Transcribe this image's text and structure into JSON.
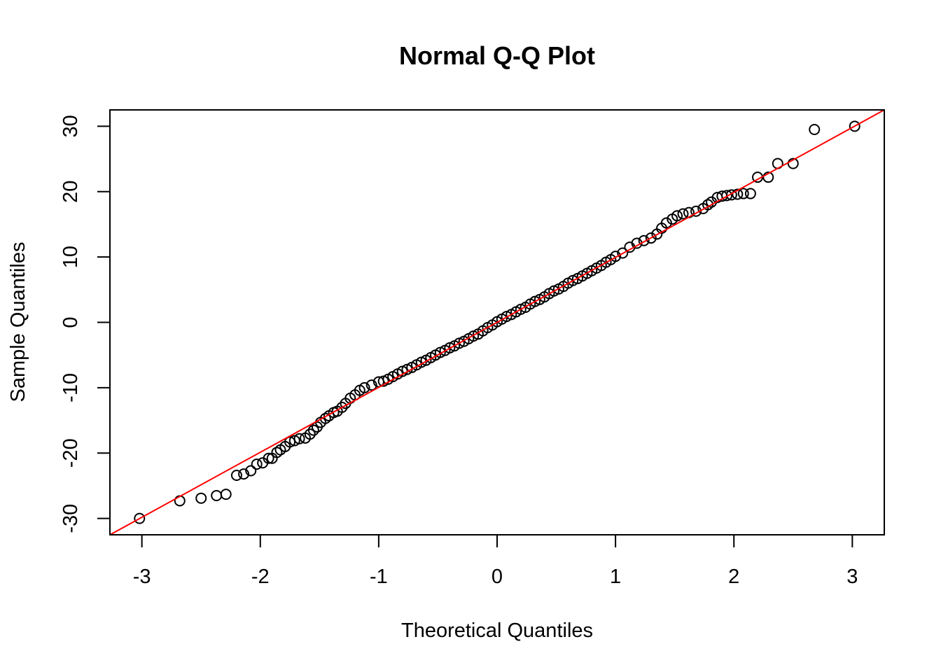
{
  "chart_data": {
    "type": "scatter",
    "title": "Normal Q-Q Plot",
    "xlabel": "Theoretical Quantiles",
    "ylabel": "Sample Quantiles",
    "xlim": [
      -3.27,
      3.27
    ],
    "ylim": [
      -32.5,
      32.5
    ],
    "xticks": [
      -3,
      -2,
      -1,
      0,
      1,
      2,
      3
    ],
    "xtick_labels": [
      "-3",
      "-2",
      "-1",
      "0",
      "1",
      "2",
      "3"
    ],
    "yticks": [
      -30,
      -20,
      -10,
      0,
      10,
      20,
      30
    ],
    "ytick_labels": [
      "-30",
      "-20",
      "-10",
      "0",
      "10",
      "20",
      "30"
    ],
    "grid": false,
    "point_color": "#000000",
    "qq_line": {
      "slope": 9.94,
      "intercept": 0.0,
      "color": "#ff0000"
    },
    "points": [
      [
        -3.02,
        -30.0
      ],
      [
        -2.68,
        -27.3
      ],
      [
        -2.5,
        -26.9
      ],
      [
        -2.37,
        -26.5
      ],
      [
        -2.29,
        -26.3
      ],
      [
        -2.2,
        -23.4
      ],
      [
        -2.14,
        -23.2
      ],
      [
        -2.08,
        -22.7
      ],
      [
        -2.03,
        -21.7
      ],
      [
        -1.98,
        -21.5
      ],
      [
        -1.93,
        -20.8
      ],
      [
        -1.9,
        -20.8
      ],
      [
        -1.86,
        -19.9
      ],
      [
        -1.83,
        -19.5
      ],
      [
        -1.79,
        -19.0
      ],
      [
        -1.75,
        -18.3
      ],
      [
        -1.71,
        -18.1
      ],
      [
        -1.67,
        -17.8
      ],
      [
        -1.62,
        -17.7
      ],
      [
        -1.58,
        -17.1
      ],
      [
        -1.55,
        -16.5
      ],
      [
        -1.52,
        -16.0
      ],
      [
        -1.49,
        -15.3
      ],
      [
        -1.45,
        -14.7
      ],
      [
        -1.42,
        -14.3
      ],
      [
        -1.38,
        -13.8
      ],
      [
        -1.35,
        -13.6
      ],
      [
        -1.31,
        -13.0
      ],
      [
        -1.28,
        -12.4
      ],
      [
        -1.24,
        -11.6
      ],
      [
        -1.2,
        -11.1
      ],
      [
        -1.16,
        -10.4
      ],
      [
        -1.12,
        -10.0
      ],
      [
        -1.06,
        -9.6
      ],
      [
        -1.0,
        -9.1
      ],
      [
        -0.96,
        -9.0
      ],
      [
        -0.92,
        -8.7
      ],
      [
        -0.88,
        -8.3
      ],
      [
        -0.84,
        -7.9
      ],
      [
        -0.8,
        -7.5
      ],
      [
        -0.76,
        -7.2
      ],
      [
        -0.72,
        -6.9
      ],
      [
        -0.68,
        -6.5
      ],
      [
        -0.64,
        -6.1
      ],
      [
        -0.6,
        -5.8
      ],
      [
        -0.56,
        -5.4
      ],
      [
        -0.52,
        -5.0
      ],
      [
        -0.48,
        -4.6
      ],
      [
        -0.44,
        -4.3
      ],
      [
        -0.4,
        -3.9
      ],
      [
        -0.36,
        -3.6
      ],
      [
        -0.32,
        -3.2
      ],
      [
        -0.28,
        -2.9
      ],
      [
        -0.24,
        -2.5
      ],
      [
        -0.2,
        -2.1
      ],
      [
        -0.16,
        -1.8
      ],
      [
        -0.12,
        -1.3
      ],
      [
        -0.08,
        -0.8
      ],
      [
        -0.04,
        -0.4
      ],
      [
        0.0,
        0.1
      ],
      [
        0.04,
        0.5
      ],
      [
        0.08,
        0.9
      ],
      [
        0.12,
        1.2
      ],
      [
        0.16,
        1.6
      ],
      [
        0.2,
        2.0
      ],
      [
        0.24,
        2.3
      ],
      [
        0.28,
        2.8
      ],
      [
        0.32,
        3.2
      ],
      [
        0.36,
        3.5
      ],
      [
        0.4,
        3.9
      ],
      [
        0.44,
        4.4
      ],
      [
        0.48,
        4.8
      ],
      [
        0.52,
        5.1
      ],
      [
        0.56,
        5.5
      ],
      [
        0.6,
        6.0
      ],
      [
        0.64,
        6.4
      ],
      [
        0.68,
        6.7
      ],
      [
        0.72,
        7.1
      ],
      [
        0.76,
        7.5
      ],
      [
        0.8,
        7.9
      ],
      [
        0.84,
        8.3
      ],
      [
        0.88,
        8.7
      ],
      [
        0.92,
        9.2
      ],
      [
        0.96,
        9.6
      ],
      [
        1.0,
        10.1
      ],
      [
        1.06,
        10.6
      ],
      [
        1.12,
        11.5
      ],
      [
        1.18,
        12.1
      ],
      [
        1.24,
        12.5
      ],
      [
        1.3,
        12.9
      ],
      [
        1.35,
        13.5
      ],
      [
        1.39,
        14.4
      ],
      [
        1.43,
        15.2
      ],
      [
        1.48,
        15.8
      ],
      [
        1.52,
        16.3
      ],
      [
        1.57,
        16.6
      ],
      [
        1.62,
        16.8
      ],
      [
        1.68,
        17.0
      ],
      [
        1.74,
        17.4
      ],
      [
        1.78,
        18.0
      ],
      [
        1.81,
        18.4
      ],
      [
        1.86,
        19.1
      ],
      [
        1.9,
        19.3
      ],
      [
        1.94,
        19.4
      ],
      [
        1.98,
        19.5
      ],
      [
        2.03,
        19.6
      ],
      [
        2.08,
        19.7
      ],
      [
        2.14,
        19.7
      ],
      [
        2.2,
        22.2
      ],
      [
        2.29,
        22.2
      ],
      [
        2.37,
        24.3
      ],
      [
        2.5,
        24.3
      ],
      [
        2.68,
        29.5
      ],
      [
        3.02,
        30.0
      ]
    ]
  }
}
